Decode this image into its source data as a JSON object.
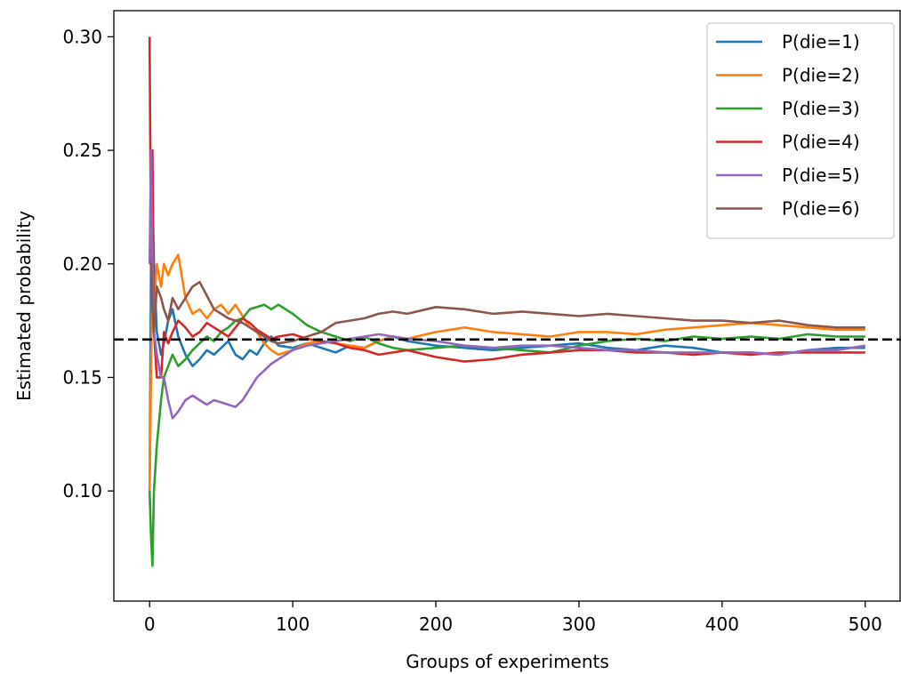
{
  "chart_data": {
    "type": "line",
    "title": "",
    "xlabel": "Groups of experiments",
    "ylabel": "Estimated probability",
    "xlim": [
      -25,
      525
    ],
    "ylim": [
      0.0515,
      0.3115
    ],
    "xticks": [
      0,
      100,
      200,
      300,
      400,
      500
    ],
    "xtick_labels": [
      "0",
      "100",
      "200",
      "300",
      "400",
      "500"
    ],
    "yticks": [
      0.1,
      0.15,
      0.2,
      0.25,
      0.3
    ],
    "ytick_labels": [
      "0.10",
      "0.15",
      "0.20",
      "0.25",
      "0.30"
    ],
    "grid": false,
    "legend_position": "upper right",
    "reference_line": {
      "y": 0.1667,
      "style": "dashed",
      "color": "#000000"
    },
    "series": [
      {
        "name": "P(die=1)",
        "color": "#1f77b4",
        "x": [
          0,
          1,
          2,
          3,
          5,
          8,
          10,
          13,
          16,
          20,
          25,
          30,
          35,
          40,
          45,
          50,
          55,
          60,
          65,
          70,
          75,
          80,
          85,
          90,
          100,
          110,
          120,
          130,
          140,
          150,
          160,
          170,
          180,
          200,
          220,
          240,
          260,
          280,
          300,
          320,
          340,
          360,
          380,
          400,
          420,
          440,
          460,
          480,
          500
        ],
        "y": [
          0.1,
          0.2,
          0.233,
          0.2,
          0.17,
          0.16,
          0.165,
          0.175,
          0.18,
          0.168,
          0.16,
          0.155,
          0.158,
          0.162,
          0.16,
          0.163,
          0.166,
          0.16,
          0.158,
          0.162,
          0.16,
          0.165,
          0.168,
          0.164,
          0.163,
          0.165,
          0.163,
          0.161,
          0.164,
          0.163,
          0.166,
          0.168,
          0.166,
          0.164,
          0.163,
          0.162,
          0.163,
          0.164,
          0.165,
          0.163,
          0.162,
          0.164,
          0.163,
          0.161,
          0.161,
          0.16,
          0.162,
          0.163,
          0.163
        ]
      },
      {
        "name": "P(die=2)",
        "color": "#ff7f0e",
        "x": [
          0,
          1,
          2,
          3,
          5,
          8,
          10,
          13,
          16,
          20,
          25,
          30,
          35,
          40,
          45,
          50,
          55,
          60,
          65,
          70,
          75,
          80,
          85,
          90,
          100,
          110,
          120,
          130,
          140,
          150,
          160,
          170,
          180,
          200,
          220,
          240,
          260,
          280,
          300,
          320,
          340,
          360,
          380,
          400,
          420,
          440,
          460,
          480,
          500
        ],
        "y": [
          0.1,
          0.15,
          0.2,
          0.18,
          0.2,
          0.19,
          0.2,
          0.195,
          0.2,
          0.204,
          0.185,
          0.178,
          0.18,
          0.176,
          0.18,
          0.182,
          0.178,
          0.182,
          0.177,
          0.172,
          0.17,
          0.165,
          0.162,
          0.16,
          0.162,
          0.165,
          0.166,
          0.165,
          0.164,
          0.163,
          0.166,
          0.168,
          0.167,
          0.17,
          0.172,
          0.17,
          0.169,
          0.168,
          0.17,
          0.17,
          0.169,
          0.171,
          0.172,
          0.173,
          0.174,
          0.173,
          0.172,
          0.171,
          0.171
        ]
      },
      {
        "name": "P(die=3)",
        "color": "#2ca02c",
        "x": [
          0,
          1,
          2,
          3,
          5,
          8,
          10,
          13,
          16,
          20,
          25,
          30,
          35,
          40,
          45,
          50,
          55,
          60,
          65,
          70,
          75,
          80,
          85,
          90,
          100,
          110,
          120,
          130,
          140,
          150,
          160,
          170,
          180,
          200,
          220,
          240,
          260,
          280,
          300,
          320,
          340,
          360,
          380,
          400,
          420,
          440,
          460,
          480,
          500
        ],
        "y": [
          0.1,
          0.08,
          0.067,
          0.1,
          0.12,
          0.14,
          0.15,
          0.155,
          0.16,
          0.155,
          0.158,
          0.162,
          0.165,
          0.168,
          0.166,
          0.17,
          0.172,
          0.175,
          0.176,
          0.18,
          0.181,
          0.182,
          0.18,
          0.182,
          0.178,
          0.173,
          0.17,
          0.168,
          0.166,
          0.168,
          0.165,
          0.163,
          0.162,
          0.163,
          0.164,
          0.163,
          0.162,
          0.161,
          0.164,
          0.166,
          0.167,
          0.166,
          0.168,
          0.167,
          0.168,
          0.167,
          0.169,
          0.168,
          0.168
        ]
      },
      {
        "name": "P(die=4)",
        "color": "#d62728",
        "x": [
          0,
          1,
          2,
          3,
          5,
          8,
          10,
          13,
          16,
          20,
          25,
          30,
          35,
          40,
          45,
          50,
          55,
          60,
          65,
          70,
          75,
          80,
          85,
          90,
          100,
          110,
          120,
          130,
          140,
          150,
          160,
          170,
          180,
          200,
          220,
          240,
          260,
          280,
          300,
          320,
          340,
          360,
          380,
          400,
          420,
          440,
          460,
          480,
          500
        ],
        "y": [
          0.3,
          0.2,
          0.25,
          0.17,
          0.15,
          0.15,
          0.17,
          0.165,
          0.17,
          0.175,
          0.172,
          0.168,
          0.17,
          0.174,
          0.172,
          0.17,
          0.168,
          0.172,
          0.176,
          0.174,
          0.171,
          0.169,
          0.167,
          0.168,
          0.169,
          0.167,
          0.166,
          0.165,
          0.163,
          0.162,
          0.16,
          0.161,
          0.162,
          0.159,
          0.157,
          0.158,
          0.16,
          0.161,
          0.162,
          0.162,
          0.161,
          0.161,
          0.16,
          0.161,
          0.16,
          0.161,
          0.161,
          0.161,
          0.161
        ]
      },
      {
        "name": "P(die=5)",
        "color": "#9467bd",
        "x": [
          0,
          1,
          2,
          3,
          5,
          8,
          10,
          13,
          16,
          20,
          25,
          30,
          35,
          40,
          45,
          50,
          55,
          60,
          65,
          70,
          75,
          80,
          85,
          90,
          100,
          110,
          120,
          130,
          140,
          150,
          160,
          170,
          180,
          200,
          220,
          240,
          260,
          280,
          300,
          320,
          340,
          360,
          380,
          400,
          420,
          440,
          460,
          480,
          500
        ],
        "y": [
          0.2,
          0.25,
          0.2,
          0.17,
          0.16,
          0.15,
          0.15,
          0.14,
          0.132,
          0.135,
          0.14,
          0.142,
          0.14,
          0.138,
          0.14,
          0.139,
          0.138,
          0.137,
          0.14,
          0.145,
          0.15,
          0.153,
          0.156,
          0.158,
          0.162,
          0.164,
          0.165,
          0.166,
          0.167,
          0.168,
          0.169,
          0.168,
          0.167,
          0.166,
          0.164,
          0.163,
          0.164,
          0.164,
          0.163,
          0.162,
          0.162,
          0.161,
          0.161,
          0.161,
          0.161,
          0.16,
          0.162,
          0.162,
          0.164
        ]
      },
      {
        "name": "P(die=6)",
        "color": "#8c564b",
        "x": [
          0,
          1,
          2,
          3,
          5,
          8,
          10,
          13,
          16,
          20,
          25,
          30,
          35,
          40,
          45,
          50,
          55,
          60,
          65,
          70,
          75,
          80,
          85,
          90,
          100,
          110,
          120,
          130,
          140,
          150,
          160,
          170,
          180,
          200,
          220,
          240,
          260,
          280,
          300,
          320,
          340,
          360,
          380,
          400,
          420,
          440,
          460,
          480,
          500
        ],
        "y": [
          0.2,
          0.2,
          0.18,
          0.17,
          0.19,
          0.185,
          0.18,
          0.175,
          0.185,
          0.18,
          0.185,
          0.19,
          0.192,
          0.186,
          0.18,
          0.178,
          0.176,
          0.175,
          0.174,
          0.172,
          0.17,
          0.168,
          0.166,
          0.165,
          0.166,
          0.168,
          0.17,
          0.174,
          0.175,
          0.176,
          0.178,
          0.179,
          0.178,
          0.181,
          0.18,
          0.178,
          0.179,
          0.178,
          0.177,
          0.178,
          0.177,
          0.176,
          0.175,
          0.175,
          0.174,
          0.175,
          0.173,
          0.172,
          0.172
        ]
      }
    ]
  }
}
